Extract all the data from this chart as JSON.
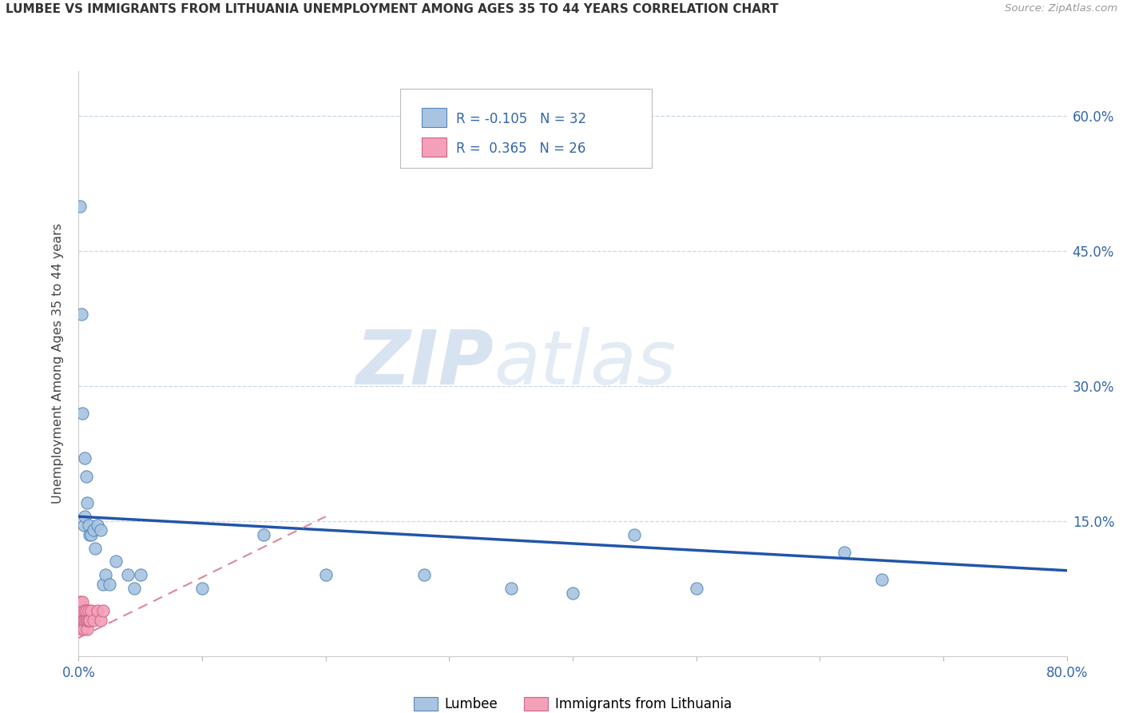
{
  "title": "LUMBEE VS IMMIGRANTS FROM LITHUANIA UNEMPLOYMENT AMONG AGES 35 TO 44 YEARS CORRELATION CHART",
  "source": "Source: ZipAtlas.com",
  "ylabel": "Unemployment Among Ages 35 to 44 years",
  "ytick_labels": [
    "60.0%",
    "45.0%",
    "30.0%",
    "15.0%"
  ],
  "ytick_values": [
    0.6,
    0.45,
    0.3,
    0.15
  ],
  "legend_lumbee": "Lumbee",
  "legend_lithuania": "Immigrants from Lithuania",
  "lumbee_R": "-0.105",
  "lumbee_N": "32",
  "lithuania_R": "0.365",
  "lithuania_N": "26",
  "lumbee_color": "#a8c4e0",
  "lumbee_color_dark": "#5588bb",
  "lithuania_color": "#f4a0b8",
  "lithuania_color_dark": "#cc6688",
  "trendline_lumbee_color": "#2255aa",
  "trendline_lithuania_color": "#dd8899",
  "background_color": "#ffffff",
  "watermark_zip": "ZIP",
  "watermark_atlas": "atlas",
  "lumbee_points": [
    [
      0.001,
      0.5
    ],
    [
      0.002,
      0.38
    ],
    [
      0.003,
      0.27
    ],
    [
      0.004,
      0.145
    ],
    [
      0.005,
      0.155
    ],
    [
      0.005,
      0.22
    ],
    [
      0.006,
      0.2
    ],
    [
      0.007,
      0.17
    ],
    [
      0.008,
      0.145
    ],
    [
      0.009,
      0.135
    ],
    [
      0.01,
      0.135
    ],
    [
      0.012,
      0.14
    ],
    [
      0.013,
      0.12
    ],
    [
      0.015,
      0.145
    ],
    [
      0.018,
      0.14
    ],
    [
      0.02,
      0.08
    ],
    [
      0.022,
      0.09
    ],
    [
      0.025,
      0.08
    ],
    [
      0.03,
      0.105
    ],
    [
      0.04,
      0.09
    ],
    [
      0.045,
      0.075
    ],
    [
      0.05,
      0.09
    ],
    [
      0.1,
      0.075
    ],
    [
      0.15,
      0.135
    ],
    [
      0.2,
      0.09
    ],
    [
      0.28,
      0.09
    ],
    [
      0.35,
      0.075
    ],
    [
      0.4,
      0.07
    ],
    [
      0.45,
      0.135
    ],
    [
      0.5,
      0.075
    ],
    [
      0.62,
      0.115
    ],
    [
      0.65,
      0.085
    ]
  ],
  "lithuania_points": [
    [
      0.001,
      0.04
    ],
    [
      0.001,
      0.05
    ],
    [
      0.001,
      0.04
    ],
    [
      0.001,
      0.06
    ],
    [
      0.002,
      0.04
    ],
    [
      0.002,
      0.05
    ],
    [
      0.002,
      0.03
    ],
    [
      0.003,
      0.04
    ],
    [
      0.003,
      0.05
    ],
    [
      0.003,
      0.06
    ],
    [
      0.004,
      0.04
    ],
    [
      0.004,
      0.03
    ],
    [
      0.005,
      0.05
    ],
    [
      0.005,
      0.04
    ],
    [
      0.006,
      0.04
    ],
    [
      0.006,
      0.05
    ],
    [
      0.007,
      0.03
    ],
    [
      0.007,
      0.04
    ],
    [
      0.008,
      0.05
    ],
    [
      0.008,
      0.04
    ],
    [
      0.009,
      0.04
    ],
    [
      0.01,
      0.05
    ],
    [
      0.012,
      0.04
    ],
    [
      0.015,
      0.05
    ],
    [
      0.018,
      0.04
    ],
    [
      0.02,
      0.05
    ]
  ],
  "xlim": [
    0.0,
    0.8
  ],
  "ylim": [
    0.0,
    0.65
  ],
  "lumbee_trend_x0": 0.0,
  "lumbee_trend_y0": 0.155,
  "lumbee_trend_x1": 0.8,
  "lumbee_trend_y1": 0.095,
  "lith_trend_x0": 0.0,
  "lith_trend_y0": 0.02,
  "lith_trend_x1": 0.2,
  "lith_trend_y1": 0.155
}
